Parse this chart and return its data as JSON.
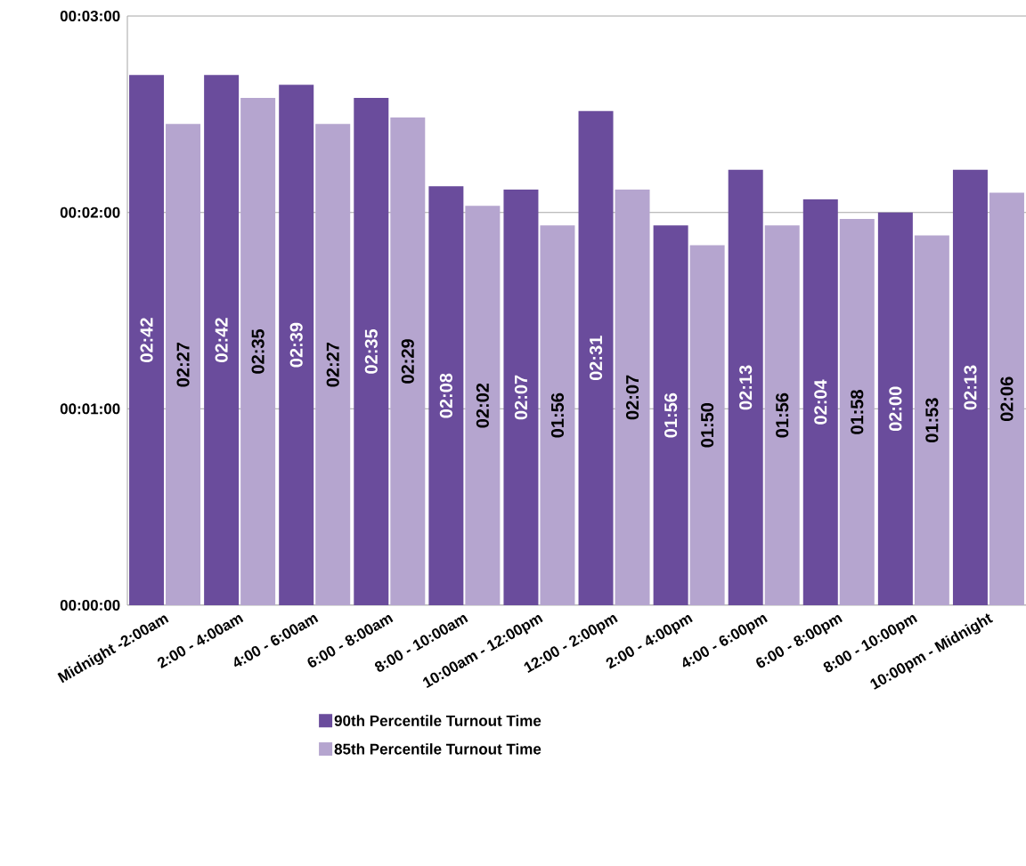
{
  "chart_data": {
    "type": "bar",
    "categories": [
      "Midnight -2:00am",
      "2:00 - 4:00am",
      "4:00 - 6:00am",
      "6:00 - 8:00am",
      "8:00 - 10:00am",
      "10:00am - 12:00pm",
      "12:00 - 2:00pm",
      "2:00 - 4:00pm",
      "4:00 - 6:00pm",
      "6:00 - 8:00pm",
      "8:00 - 10:00pm",
      "10:00pm - Midnight"
    ],
    "series": [
      {
        "name": "90th Percentile Turnout  Time",
        "color": "#6a4c9c",
        "values": [
          162,
          162,
          159,
          155,
          128,
          127,
          151,
          116,
          133,
          124,
          120,
          133
        ],
        "value_labels": [
          "02:42",
          "02:42",
          "02:39",
          "02:35",
          "02:08",
          "02:07",
          "02:31",
          "01:56",
          "02:13",
          "02:04",
          "02:00",
          "02:13"
        ]
      },
      {
        "name": "85th Percentile Turnout Time",
        "color": "#b5a5cf",
        "values": [
          147,
          155,
          147,
          149,
          122,
          116,
          127,
          110,
          116,
          118,
          113,
          126
        ],
        "value_labels": [
          "02:27",
          "02:35",
          "02:27",
          "02:29",
          "02:02",
          "01:56",
          "02:07",
          "01:50",
          "01:56",
          "01:58",
          "01:53",
          "02:06"
        ]
      }
    ],
    "ylim": [
      0,
      180
    ],
    "yticks": [
      {
        "value": 0,
        "label": "00:00:00"
      },
      {
        "value": 60,
        "label": "00:01:00"
      },
      {
        "value": 120,
        "label": "00:02:00"
      },
      {
        "value": 180,
        "label": "00:03:00"
      }
    ],
    "grid": "y",
    "legend": "bottom"
  }
}
